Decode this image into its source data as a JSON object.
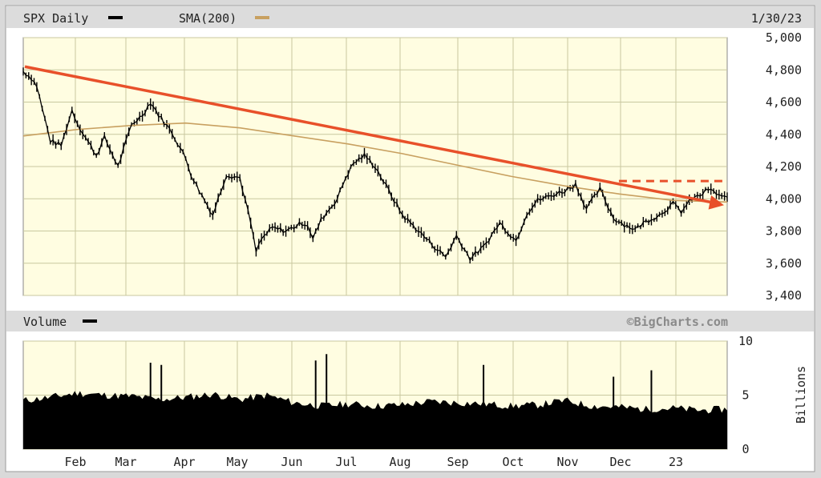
{
  "header": {
    "symbol_label": "SPX Daily",
    "sma_label": "SMA(200)",
    "date_label": "1/30/23",
    "symbol_swatch_color": "#000000",
    "sma_swatch_color": "#c8a060"
  },
  "volume_header": {
    "label": "Volume",
    "swatch_color": "#000000",
    "credit": "©BigCharts.com"
  },
  "colors": {
    "panel_bg": "#fffde1",
    "grid": "#c8c8a0",
    "header_bar": "#dcdcdc",
    "price": "#000000",
    "sma": "#c8a060",
    "trendline": "#e8502a"
  },
  "chart_data": [
    {
      "type": "line",
      "title": "SPX Daily",
      "ylim": [
        3400,
        5000
      ],
      "yticks": [
        "5,000",
        "4,800",
        "4,600",
        "4,400",
        "4,200",
        "4,000",
        "3,800",
        "3,600",
        "3,400"
      ],
      "ytick_values": [
        5000,
        4800,
        4600,
        4400,
        4200,
        4000,
        3800,
        3600,
        3400
      ],
      "x_labels": [
        "Feb",
        "Mar",
        "Apr",
        "May",
        "Jun",
        "Jul",
        "Aug",
        "Sep",
        "Oct",
        "Nov",
        "Dec",
        "23"
      ],
      "series": [
        {
          "name": "SPX Daily",
          "x": [
            0,
            3,
            5,
            7,
            10,
            14,
            18,
            20,
            23,
            27,
            30,
            35,
            40,
            44,
            47,
            50,
            55,
            60,
            62,
            65,
            70,
            72,
            75,
            80,
            84,
            86,
            88,
            92,
            97,
            103,
            105,
            107,
            110,
            116,
            119,
            122,
            126,
            130,
            135,
            140,
            146,
            152,
            156,
            160,
            165,
            170,
            176,
            182,
            186,
            190,
            195,
            200,
            204,
            208,
            213,
            218,
            222,
            226,
            230,
            235,
            240,
            243,
            247,
            250,
            253,
            255,
            260
          ],
          "values": [
            4790,
            4750,
            4700,
            4560,
            4360,
            4330,
            4550,
            4470,
            4380,
            4270,
            4380,
            4200,
            4460,
            4520,
            4600,
            4520,
            4410,
            4250,
            4150,
            4050,
            3900,
            4000,
            4150,
            4130,
            3850,
            3670,
            3750,
            3820,
            3800,
            3850,
            3840,
            3750,
            3870,
            4000,
            4130,
            4220,
            4270,
            4200,
            4050,
            3900,
            3800,
            3700,
            3640,
            3770,
            3630,
            3700,
            3850,
            3740,
            3910,
            3990,
            4020,
            4050,
            4090,
            3940,
            4060,
            3880,
            3840,
            3810,
            3860,
            3900,
            3970,
            3920,
            4000,
            4020,
            4060,
            4040,
            4000
          ]
        },
        {
          "name": "SMA(200)",
          "x": [
            0,
            20,
            40,
            60,
            80,
            100,
            120,
            140,
            160,
            180,
            200,
            220,
            240,
            260
          ],
          "values": [
            4390,
            4430,
            4455,
            4470,
            4440,
            4390,
            4340,
            4280,
            4210,
            4140,
            4080,
            4030,
            3990,
            3980
          ]
        }
      ],
      "annotations": [
        {
          "name": "downtrend line",
          "type": "arrow",
          "from": [
            0,
            4820
          ],
          "to": [
            260,
            3960
          ]
        },
        {
          "name": "resistance level",
          "type": "dashed-line",
          "from": [
            220,
            4110
          ],
          "to": [
            260,
            4110
          ]
        }
      ]
    },
    {
      "type": "bar",
      "title": "Volume",
      "ylabel": "Billions",
      "ylim": [
        0,
        10
      ],
      "yticks": [
        "10",
        "5",
        "0"
      ],
      "ytick_values": [
        10,
        5,
        0
      ],
      "x": [
        0,
        10,
        20,
        30,
        40,
        50,
        60,
        70,
        80,
        90,
        100,
        110,
        120,
        130,
        140,
        150,
        160,
        170,
        180,
        190,
        200,
        210,
        220,
        230,
        240,
        250,
        260
      ],
      "values": [
        4.5,
        4.8,
        5.2,
        5.0,
        4.9,
        4.6,
        4.8,
        5.1,
        4.6,
        5.0,
        4.3,
        4.0,
        4.2,
        4.0,
        4.1,
        4.4,
        4.3,
        4.2,
        4.0,
        4.1,
        4.5,
        4.0,
        3.9,
        3.7,
        3.8,
        3.6,
        3.7
      ],
      "spikes_x": [
        47,
        51,
        108,
        112,
        170,
        218,
        232
      ],
      "spikes_values": [
        8.0,
        7.8,
        8.2,
        8.8,
        7.8,
        6.7,
        7.3
      ]
    }
  ]
}
